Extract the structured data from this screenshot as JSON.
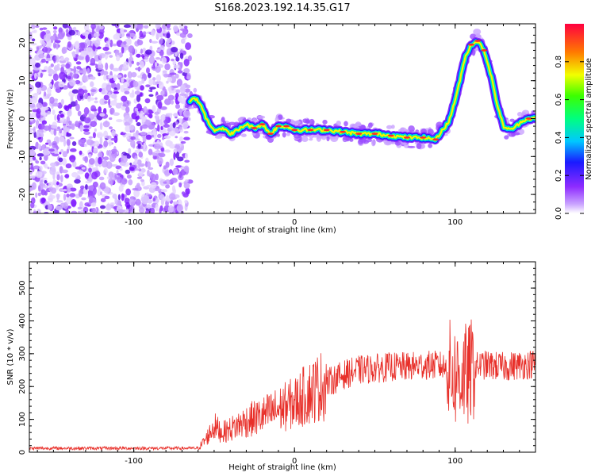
{
  "figure": {
    "title": "S168.2023.192.14.35.G17"
  },
  "colors": {
    "snr_line": "#e8302a",
    "spectrum_low": "#9b30ff",
    "spectrum_high": "#e0003a",
    "axis": "#000000",
    "background": "#ffffff"
  },
  "chart_data": [
    {
      "type": "heatmap",
      "title": "",
      "xlabel": "Height of straight line (km)",
      "ylabel": "Frequency (Hz)",
      "xlim": [
        -165,
        150
      ],
      "ylim": [
        -25,
        25
      ],
      "xticks": [
        -100,
        0,
        100
      ],
      "yticks": [
        -20,
        -10,
        0,
        10,
        20
      ],
      "grid": false,
      "colorbar": {
        "label": "Normalized spectral amplitude",
        "range": [
          0.0,
          1.0
        ],
        "ticks": [
          0.0,
          0.2,
          0.4,
          0.6,
          0.8
        ],
        "colormap": "gist_rainbow_r (violet → blue → cyan → green → yellow → red)"
      },
      "ridge": {
        "description": "main spectral peak frequency vs height",
        "x": [
          -65,
          -62,
          -58,
          -55,
          -50,
          -45,
          -40,
          -35,
          -30,
          -25,
          -20,
          -15,
          -10,
          -5,
          0,
          10,
          20,
          30,
          40,
          50,
          60,
          70,
          80,
          88,
          92,
          96,
          100,
          103,
          106,
          110,
          114,
          118,
          122,
          126,
          130,
          134,
          138,
          142,
          146,
          150
        ],
        "y": [
          4.5,
          5.5,
          3.5,
          0,
          -3,
          -2.5,
          -4,
          -3,
          -1.5,
          -2.5,
          -1.5,
          -4,
          -2,
          -2,
          -3,
          -3,
          -3,
          -3.5,
          -4,
          -4,
          -4.5,
          -5,
          -5,
          -5.5,
          -3,
          -1,
          5,
          10,
          16,
          19.5,
          20.5,
          18,
          12,
          4,
          -2,
          -3,
          -2,
          -0.5,
          0,
          0
        ]
      },
      "noise_region_xlim": [
        -165,
        -65
      ]
    },
    {
      "type": "line",
      "title": "",
      "xlabel": "Height of straight line (km)",
      "ylabel": "SNR (10 * v/v)",
      "xlim": [
        -165,
        150
      ],
      "ylim": [
        0,
        580
      ],
      "xticks": [
        -100,
        0,
        100
      ],
      "yticks": [
        0,
        100,
        200,
        300,
        400,
        500
      ],
      "grid": false,
      "series": [
        {
          "envelope_x": [
            -165,
            -60,
            -55,
            -50,
            -45,
            -40,
            -30,
            -20,
            -10,
            0,
            10,
            20,
            30,
            40,
            50,
            60,
            70,
            80,
            90,
            95,
            100,
            105,
            108,
            110,
            115,
            120,
            130,
            140,
            150
          ],
          "envelope_y": [
            12,
            12,
            40,
            80,
            60,
            70,
            95,
            110,
            130,
            150,
            185,
            210,
            235,
            250,
            255,
            260,
            260,
            265,
            265,
            255,
            230,
            240,
            230,
            250,
            265,
            265,
            260,
            265,
            270
          ]
        }
      ]
    }
  ]
}
